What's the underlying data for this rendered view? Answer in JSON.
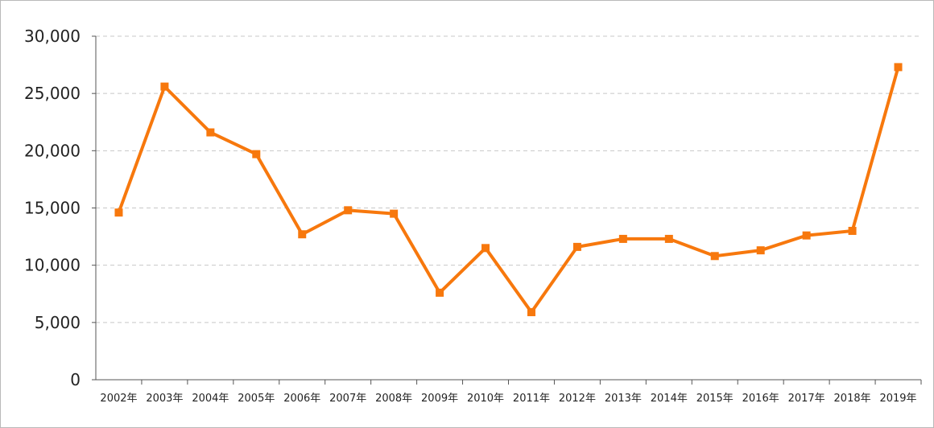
{
  "chart_data": {
    "type": "line",
    "title": "",
    "xlabel": "",
    "ylabel": "",
    "categories": [
      "2002年",
      "2003年",
      "2004年",
      "2005年",
      "2006年",
      "2007年",
      "2008年",
      "2009年",
      "2010年",
      "2011年",
      "2012年",
      "2013年",
      "2014年",
      "2015年",
      "2016年",
      "2017年",
      "2018年",
      "2019年"
    ],
    "series": [
      {
        "values": [
          14600,
          25600,
          21600,
          19700,
          12700,
          14800,
          14500,
          7600,
          11500,
          5900,
          11600,
          12300,
          12300,
          10800,
          11300,
          12600,
          13000,
          27300
        ]
      }
    ],
    "ylim": [
      0,
      30000
    ],
    "y_ticks": [
      0,
      5000,
      10000,
      15000,
      20000,
      25000,
      30000
    ],
    "y_tick_labels": [
      "0",
      "5,000",
      "10,000",
      "15,000",
      "20,000",
      "25,000",
      "30,000"
    ],
    "grid": "horizontal dashed",
    "legend": "none",
    "colors": {
      "line": "#f7780d",
      "grid": "#c8c8c8",
      "axis": "#555555"
    }
  }
}
